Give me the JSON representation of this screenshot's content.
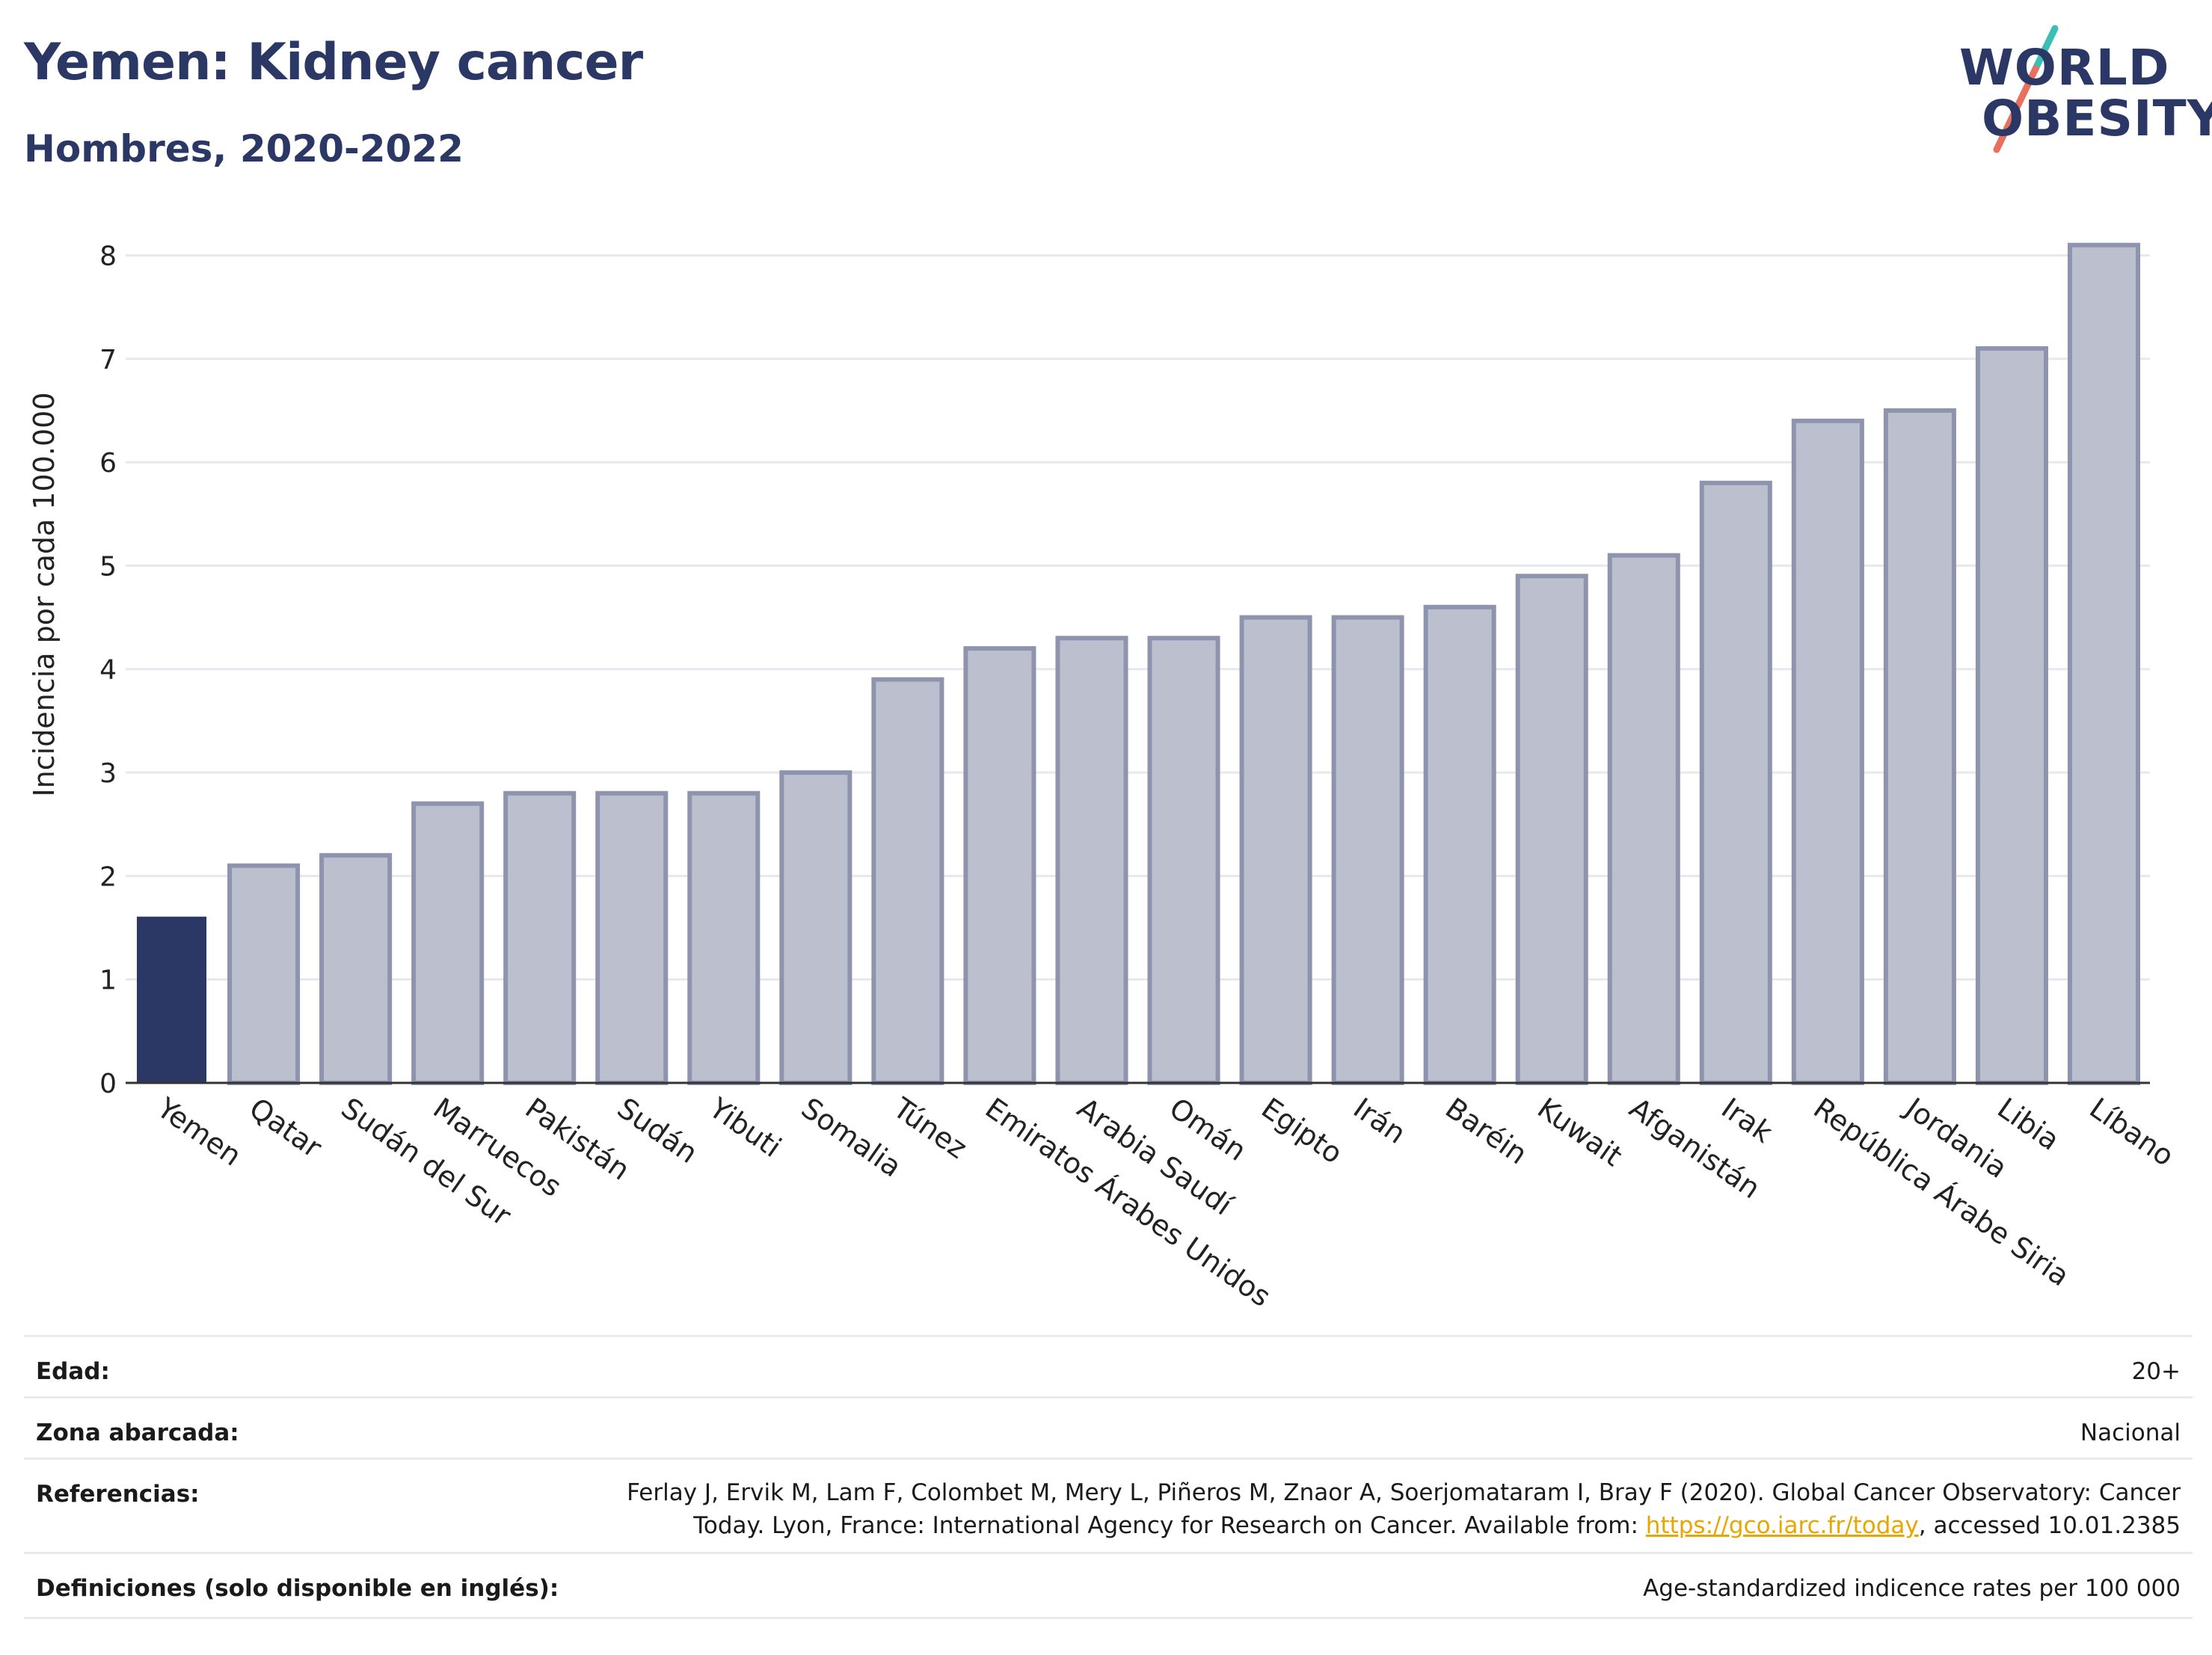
{
  "header": {
    "title": "Yemen: Kidney cancer",
    "subtitle": "Hombres, 2020-2022"
  },
  "logo": {
    "line1": "WORLD",
    "line2": "OBESITY",
    "colors": {
      "text": "#2b3764",
      "slash_teal": "#3bbfb5",
      "slash_coral": "#e8705f"
    }
  },
  "chart_data": {
    "type": "bar",
    "ylabel": "Incidencia por cada 100.000",
    "xlabel": "",
    "ylim": [
      0,
      8.3
    ],
    "yticks": [
      0,
      1,
      2,
      3,
      4,
      5,
      6,
      7,
      8
    ],
    "grid": true,
    "highlight_category": "Yemen",
    "colors": {
      "highlight": "#2b3764",
      "bar_fill": "#bcc0ce",
      "bar_stroke": "#8e94ad",
      "grid": "#e6e8ee",
      "axis": "#333333"
    },
    "categories": [
      "Yemen",
      "Qatar",
      "Sudán del Sur",
      "Marruecos",
      "Pakistán",
      "Sudán",
      "Yibuti",
      "Somalia",
      "Túnez",
      "Emiratos Árabes Unidos",
      "Arabia Saudí",
      "Omán",
      "Egipto",
      "Irán",
      "Baréin",
      "Kuwait",
      "Afganistán",
      "Irak",
      "República Árabe Siria",
      "Jordania",
      "Libia",
      "Líbano"
    ],
    "values": [
      1.6,
      2.1,
      2.2,
      2.7,
      2.8,
      2.8,
      2.8,
      3.0,
      3.9,
      4.2,
      4.3,
      4.3,
      4.5,
      4.5,
      4.6,
      4.9,
      5.1,
      5.8,
      6.4,
      6.5,
      7.1,
      8.1
    ]
  },
  "meta": {
    "rows": [
      {
        "label": "Edad:",
        "value": "20+"
      },
      {
        "label": "Zona abarcada:",
        "value": "Nacional"
      },
      {
        "label": "Referencias:",
        "value_line1": "Ferlay J, Ervik M, Lam F, Colombet M, Mery L, Piñeros M, Znaor A, Soerjomataram I, Bray F (2020). Global Cancer Observatory: Cancer",
        "value_line2_pre": "Today. Lyon, France: International Agency for Research on Cancer. Available from: ",
        "link": "https://gco.iarc.fr/today",
        "value_line2_post": ", accessed 10.01.2385"
      },
      {
        "label": "Definiciones (solo disponible en inglés):",
        "value": "Age-standardized indicence rates per 100 000"
      }
    ]
  }
}
